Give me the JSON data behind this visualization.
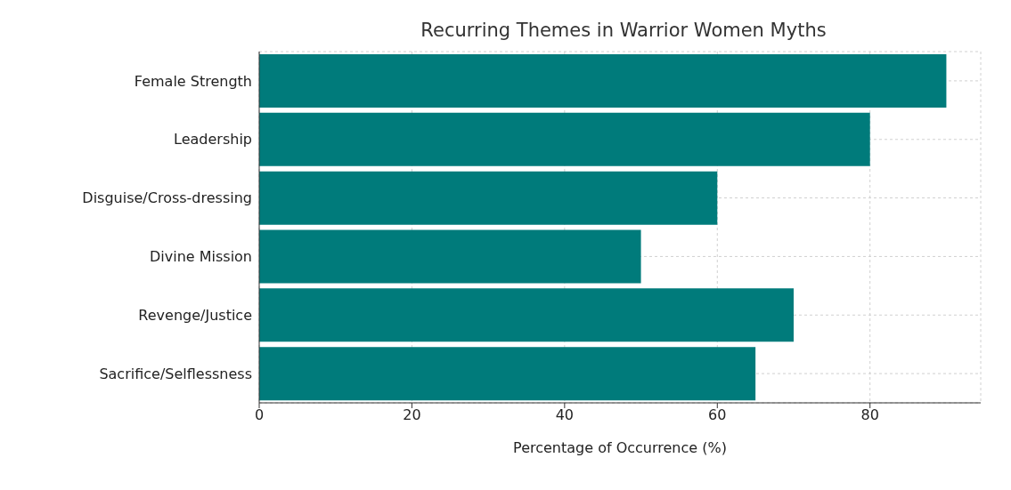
{
  "chart_data": {
    "type": "bar",
    "orientation": "horizontal",
    "title": "Recurring Themes in Warrior Women Myths",
    "xlabel": "Percentage of Occurrence (%)",
    "categories": [
      "Female Strength",
      "Leadership",
      "Disguise/Cross-dressing",
      "Divine Mission",
      "Revenge/Justice",
      "Sacrifice/Selflessness"
    ],
    "values": [
      90,
      80,
      60,
      50,
      70,
      65
    ],
    "color": "#007b7b",
    "xlim": [
      0,
      94.5
    ],
    "xticks": [
      0,
      20,
      40,
      60,
      80
    ],
    "grid": true
  }
}
